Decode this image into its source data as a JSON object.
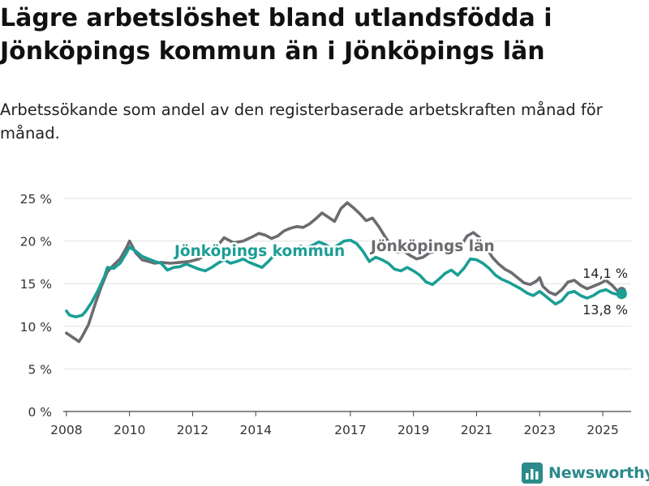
{
  "title": "Lägre arbetslöshet bland utlandsfödda i Jönköpings kommun än i Jönköpings län",
  "subtitle": "Arbetssökande som andel av den registerbaserade arbetskraften månad för månad.",
  "brand": "Newsworthy",
  "colors": {
    "kommun": "#1a9e95",
    "lan": "#6b6b70",
    "grid": "#e1e1e1",
    "brand": "#2b8a8a"
  },
  "chart_data": {
    "type": "line",
    "title": "",
    "xlabel": "",
    "ylabel": "",
    "ylim": [
      0,
      25
    ],
    "xlim": [
      2007.9,
      2025.9
    ],
    "y_ticks": [
      0,
      5,
      10,
      15,
      20,
      25
    ],
    "y_tick_labels": [
      "0 %",
      "5 %",
      "10 %",
      "15 %",
      "20 %",
      "25 %"
    ],
    "x_ticks": [
      2008,
      2010,
      2012,
      2014,
      2017,
      2019,
      2021,
      2023,
      2025
    ],
    "x_tick_labels": [
      "2008",
      "2010",
      "2012",
      "2014",
      "2017",
      "2019",
      "2021",
      "2023",
      "2025"
    ],
    "grid": true,
    "legend": "inline labels",
    "series": [
      {
        "name": "Jönköpings län",
        "color": "#6b6b70",
        "end_label": "14,1 %",
        "points": [
          [
            2008.0,
            9.2
          ],
          [
            2008.2,
            8.7
          ],
          [
            2008.4,
            8.2
          ],
          [
            2008.5,
            8.8
          ],
          [
            2008.7,
            10.2
          ],
          [
            2008.9,
            12.5
          ],
          [
            2009.1,
            14.6
          ],
          [
            2009.3,
            16.4
          ],
          [
            2009.5,
            17.2
          ],
          [
            2009.7,
            17.9
          ],
          [
            2009.9,
            19.2
          ],
          [
            2010.0,
            20.0
          ],
          [
            2010.2,
            18.6
          ],
          [
            2010.4,
            17.8
          ],
          [
            2010.6,
            17.6
          ],
          [
            2010.8,
            17.4
          ],
          [
            2011.0,
            17.5
          ],
          [
            2011.3,
            17.4
          ],
          [
            2011.6,
            17.5
          ],
          [
            2011.9,
            17.6
          ],
          [
            2012.2,
            17.9
          ],
          [
            2012.5,
            18.6
          ],
          [
            2012.8,
            19.5
          ],
          [
            2013.0,
            20.4
          ],
          [
            2013.3,
            19.8
          ],
          [
            2013.6,
            20.0
          ],
          [
            2013.9,
            20.5
          ],
          [
            2014.1,
            20.9
          ],
          [
            2014.3,
            20.7
          ],
          [
            2014.5,
            20.3
          ],
          [
            2014.7,
            20.6
          ],
          [
            2014.9,
            21.2
          ],
          [
            2015.1,
            21.5
          ],
          [
            2015.3,
            21.7
          ],
          [
            2015.5,
            21.6
          ],
          [
            2015.7,
            22.0
          ],
          [
            2015.9,
            22.6
          ],
          [
            2016.1,
            23.3
          ],
          [
            2016.3,
            22.8
          ],
          [
            2016.5,
            22.3
          ],
          [
            2016.7,
            23.8
          ],
          [
            2016.9,
            24.5
          ],
          [
            2017.1,
            23.9
          ],
          [
            2017.3,
            23.2
          ],
          [
            2017.5,
            22.4
          ],
          [
            2017.7,
            22.7
          ],
          [
            2017.9,
            21.7
          ],
          [
            2018.1,
            20.5
          ],
          [
            2018.3,
            19.4
          ],
          [
            2018.5,
            18.7
          ],
          [
            2018.7,
            18.8
          ],
          [
            2018.9,
            18.3
          ],
          [
            2019.1,
            17.9
          ],
          [
            2019.3,
            18.1
          ],
          [
            2019.5,
            18.6
          ],
          [
            2019.7,
            18.8
          ],
          [
            2019.9,
            19.2
          ],
          [
            2020.1,
            19.4
          ],
          [
            2020.3,
            19.3
          ],
          [
            2020.5,
            19.4
          ],
          [
            2020.7,
            20.6
          ],
          [
            2020.9,
            21.0
          ],
          [
            2021.1,
            20.4
          ],
          [
            2021.3,
            19.3
          ],
          [
            2021.5,
            18.1
          ],
          [
            2021.7,
            17.3
          ],
          [
            2021.9,
            16.7
          ],
          [
            2022.1,
            16.3
          ],
          [
            2022.3,
            15.7
          ],
          [
            2022.5,
            15.1
          ],
          [
            2022.7,
            14.9
          ],
          [
            2022.9,
            15.3
          ],
          [
            2023.0,
            15.7
          ],
          [
            2023.1,
            14.7
          ],
          [
            2023.3,
            14.0
          ],
          [
            2023.5,
            13.7
          ],
          [
            2023.7,
            14.3
          ],
          [
            2023.9,
            15.2
          ],
          [
            2024.1,
            15.4
          ],
          [
            2024.3,
            14.8
          ],
          [
            2024.5,
            14.4
          ],
          [
            2024.7,
            14.7
          ],
          [
            2024.9,
            15.0
          ],
          [
            2025.1,
            15.4
          ],
          [
            2025.3,
            14.8
          ],
          [
            2025.5,
            14.0
          ],
          [
            2025.6,
            14.1
          ]
        ]
      },
      {
        "name": "Jönköpings kommun",
        "color": "#1a9e95",
        "end_label": "13,8 %",
        "points": [
          [
            2008.0,
            11.8
          ],
          [
            2008.1,
            11.3
          ],
          [
            2008.3,
            11.1
          ],
          [
            2008.5,
            11.3
          ],
          [
            2008.6,
            11.7
          ],
          [
            2008.8,
            12.8
          ],
          [
            2009.0,
            14.2
          ],
          [
            2009.2,
            15.8
          ],
          [
            2009.3,
            16.9
          ],
          [
            2009.5,
            16.8
          ],
          [
            2009.7,
            17.4
          ],
          [
            2009.9,
            18.6
          ],
          [
            2010.0,
            19.3
          ],
          [
            2010.2,
            18.8
          ],
          [
            2010.4,
            18.2
          ],
          [
            2010.6,
            17.9
          ],
          [
            2010.8,
            17.6
          ],
          [
            2011.0,
            17.4
          ],
          [
            2011.2,
            16.6
          ],
          [
            2011.4,
            16.9
          ],
          [
            2011.6,
            17.0
          ],
          [
            2011.8,
            17.3
          ],
          [
            2012.0,
            17.0
          ],
          [
            2012.2,
            16.7
          ],
          [
            2012.4,
            16.5
          ],
          [
            2012.6,
            16.9
          ],
          [
            2012.8,
            17.4
          ],
          [
            2013.0,
            17.8
          ],
          [
            2013.2,
            17.4
          ],
          [
            2013.4,
            17.6
          ],
          [
            2013.6,
            17.9
          ],
          [
            2013.8,
            17.5
          ],
          [
            2014.0,
            17.2
          ],
          [
            2014.2,
            16.9
          ],
          [
            2014.4,
            17.6
          ],
          [
            2014.6,
            18.4
          ],
          [
            2014.8,
            18.9
          ],
          [
            2015.0,
            18.8
          ],
          [
            2015.2,
            19.1
          ],
          [
            2015.4,
            19.4
          ],
          [
            2015.6,
            19.2
          ],
          [
            2015.8,
            19.5
          ],
          [
            2016.0,
            19.9
          ],
          [
            2016.2,
            19.6
          ],
          [
            2016.4,
            19.1
          ],
          [
            2016.6,
            19.5
          ],
          [
            2016.8,
            20.0
          ],
          [
            2017.0,
            20.1
          ],
          [
            2017.2,
            19.7
          ],
          [
            2017.4,
            18.8
          ],
          [
            2017.6,
            17.6
          ],
          [
            2017.8,
            18.1
          ],
          [
            2018.0,
            17.8
          ],
          [
            2018.2,
            17.4
          ],
          [
            2018.4,
            16.7
          ],
          [
            2018.6,
            16.5
          ],
          [
            2018.8,
            16.9
          ],
          [
            2019.0,
            16.5
          ],
          [
            2019.2,
            16.0
          ],
          [
            2019.4,
            15.2
          ],
          [
            2019.6,
            14.9
          ],
          [
            2019.8,
            15.5
          ],
          [
            2020.0,
            16.2
          ],
          [
            2020.2,
            16.6
          ],
          [
            2020.4,
            16.0
          ],
          [
            2020.6,
            16.8
          ],
          [
            2020.8,
            17.9
          ],
          [
            2021.0,
            17.8
          ],
          [
            2021.2,
            17.4
          ],
          [
            2021.4,
            16.8
          ],
          [
            2021.6,
            16.0
          ],
          [
            2021.8,
            15.5
          ],
          [
            2022.0,
            15.2
          ],
          [
            2022.2,
            14.8
          ],
          [
            2022.4,
            14.4
          ],
          [
            2022.6,
            13.9
          ],
          [
            2022.8,
            13.6
          ],
          [
            2023.0,
            14.1
          ],
          [
            2023.1,
            13.8
          ],
          [
            2023.3,
            13.2
          ],
          [
            2023.5,
            12.6
          ],
          [
            2023.7,
            13.0
          ],
          [
            2023.9,
            13.9
          ],
          [
            2024.1,
            14.1
          ],
          [
            2024.3,
            13.6
          ],
          [
            2024.5,
            13.3
          ],
          [
            2024.7,
            13.6
          ],
          [
            2024.9,
            14.1
          ],
          [
            2025.1,
            14.3
          ],
          [
            2025.3,
            13.9
          ],
          [
            2025.5,
            13.7
          ],
          [
            2025.6,
            13.8
          ]
        ]
      }
    ]
  }
}
